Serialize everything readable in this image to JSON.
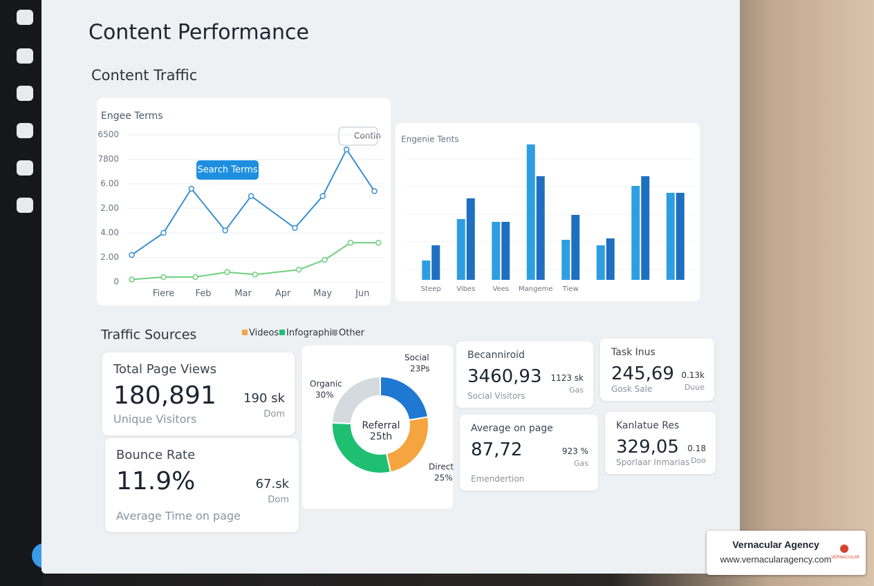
{
  "title": "Content Performance",
  "section_title": "Content Traffic",
  "search_button": "Contin",
  "chart_data": [
    {
      "type": "line",
      "title": "Engee Terms",
      "annotation": "Search Terms",
      "xlim": [
        0,
        6.5
      ],
      "xticks": [
        {
          "value": 1,
          "label": "Fiere"
        },
        {
          "value": 2,
          "label": "Feb"
        },
        {
          "value": 3,
          "label": "Mar"
        },
        {
          "value": 4,
          "label": "Apr"
        },
        {
          "value": 5,
          "label": "May"
        },
        {
          "value": 6,
          "label": "Jun"
        }
      ],
      "ylim": [
        0,
        6
      ],
      "yticks": [
        0,
        {
          "value": 1,
          "label": "2.00"
        },
        {
          "value": 2,
          "label": "4.00"
        },
        {
          "value": 3,
          "label": "2.00"
        },
        {
          "value": 4,
          "label": "6.00"
        },
        {
          "value": 5,
          "label": "7800"
        },
        {
          "value": 6,
          "label": "6500"
        }
      ],
      "grid": true,
      "series": [
        {
          "color": "#3a8fd0",
          "x": [
            0.2,
            1.0,
            1.7,
            2.55,
            3.2,
            4.3,
            5.0,
            5.6,
            6.3
          ],
          "values": [
            1.1,
            2.0,
            3.8,
            2.1,
            3.5,
            2.2,
            3.5,
            5.4,
            3.7
          ]
        },
        {
          "color": "#6dcf7e",
          "x": [
            0.2,
            1.0,
            1.8,
            2.6,
            3.3,
            4.4,
            5.05,
            5.7,
            6.4
          ],
          "values": [
            0.1,
            0.2,
            0.2,
            0.4,
            0.3,
            0.5,
            0.9,
            1.6,
            1.6
          ]
        }
      ]
    },
    {
      "type": "bar",
      "title": "Engenie Tents",
      "categories": [
        "Steep",
        "Vibes",
        "Vees",
        "Mangeme",
        "Tiew",
        null,
        null,
        null
      ],
      "ylim": [
        0,
        100
      ],
      "series": [
        {
          "color": "#2f9ee0",
          "values": [
            14,
            44,
            42,
            98,
            29,
            25,
            68,
            63
          ]
        },
        {
          "color": "#1f6fc0",
          "values": [
            25,
            59,
            42,
            75,
            47,
            30,
            75,
            63
          ]
        }
      ]
    },
    {
      "type": "pie",
      "categories": [
        "Social",
        "Direct",
        "Organic",
        "Referral"
      ],
      "values": [
        23,
        25,
        30,
        25
      ],
      "value_labels": [
        "23Ps",
        "25%",
        "30%",
        "25th"
      ],
      "colors": [
        "#1f78d1",
        "#f5a540",
        "#1fbf72",
        "#d5dade"
      ]
    }
  ],
  "traffic_sources": {
    "title": "Traffic Sources",
    "legend": [
      {
        "name": "Videos",
        "color": "#f5a540"
      },
      {
        "name": "Infographic",
        "color": "#1fbf72"
      },
      {
        "name": "Other",
        "color": "#9aa0a6"
      }
    ]
  },
  "cards": [
    {
      "label": "Total Page Views",
      "value": "180,891",
      "caption": "Unique Visitors",
      "side_value": "190 sk",
      "side_caption": "Dom"
    },
    {
      "label": "Bounce Rate",
      "value": "11.9%",
      "caption": "Average Time on page",
      "side_value": "67.sk",
      "side_caption": "Dom"
    },
    {
      "label": "Becanniroid",
      "value": "3460,93",
      "caption": "Social Visitors",
      "side_value": "1123 sk",
      "side_caption": "Gas"
    },
    {
      "label": "Task Inus",
      "value": "245,69",
      "caption": "Gosk Sale",
      "side_value": "0.13k",
      "side_caption": "Duue"
    },
    {
      "label": "Average on page",
      "value": "87,72",
      "caption": "Emendertion",
      "side_value": "923 %",
      "side_caption": "Gas"
    },
    {
      "label": "Kanlatue Res",
      "value": "329,05",
      "caption": "Sporlaar Inmarias",
      "side_value": "0.18",
      "side_caption": "Doo"
    }
  ],
  "badge": {
    "name": "Vernacular Agency",
    "url": "www.vernacularagency.com",
    "logo": "VERNACULAR"
  }
}
